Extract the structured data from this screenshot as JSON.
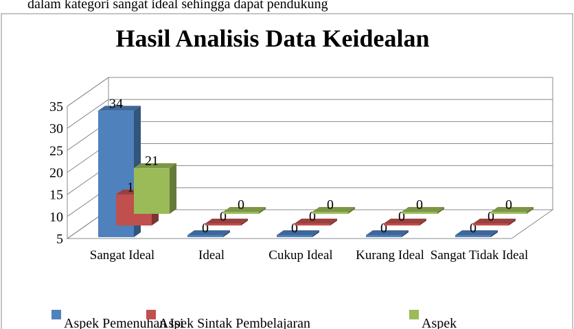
{
  "page_text": "dalam kategori sangat ideal sehingga dapat pendukung",
  "chart_data": {
    "type": "bar3d",
    "title": "Hasil Analisis Data Keidealan",
    "categories": [
      "Sangat Ideal",
      "Ideal",
      "Cukup Ideal",
      "Kurang Ideal",
      "Sangat Tidak Ideal"
    ],
    "series": [
      {
        "name": "Aspek Pemenuhan Isi",
        "color": "#4f81bd",
        "values": [
          34,
          0,
          0,
          0,
          0
        ]
      },
      {
        "name": "Aspek Sintak Pembelajaran",
        "color": "#c0504d",
        "values": [
          15,
          0,
          0,
          0,
          0
        ]
      },
      {
        "name": "Aspek",
        "color": "#9bbb59",
        "values": [
          21,
          0,
          0,
          0,
          0
        ]
      }
    ],
    "ylim": [
      5,
      35
    ],
    "yticks": [
      5,
      10,
      15,
      20,
      25,
      30,
      35
    ],
    "grid": true,
    "legend": "bottom"
  }
}
